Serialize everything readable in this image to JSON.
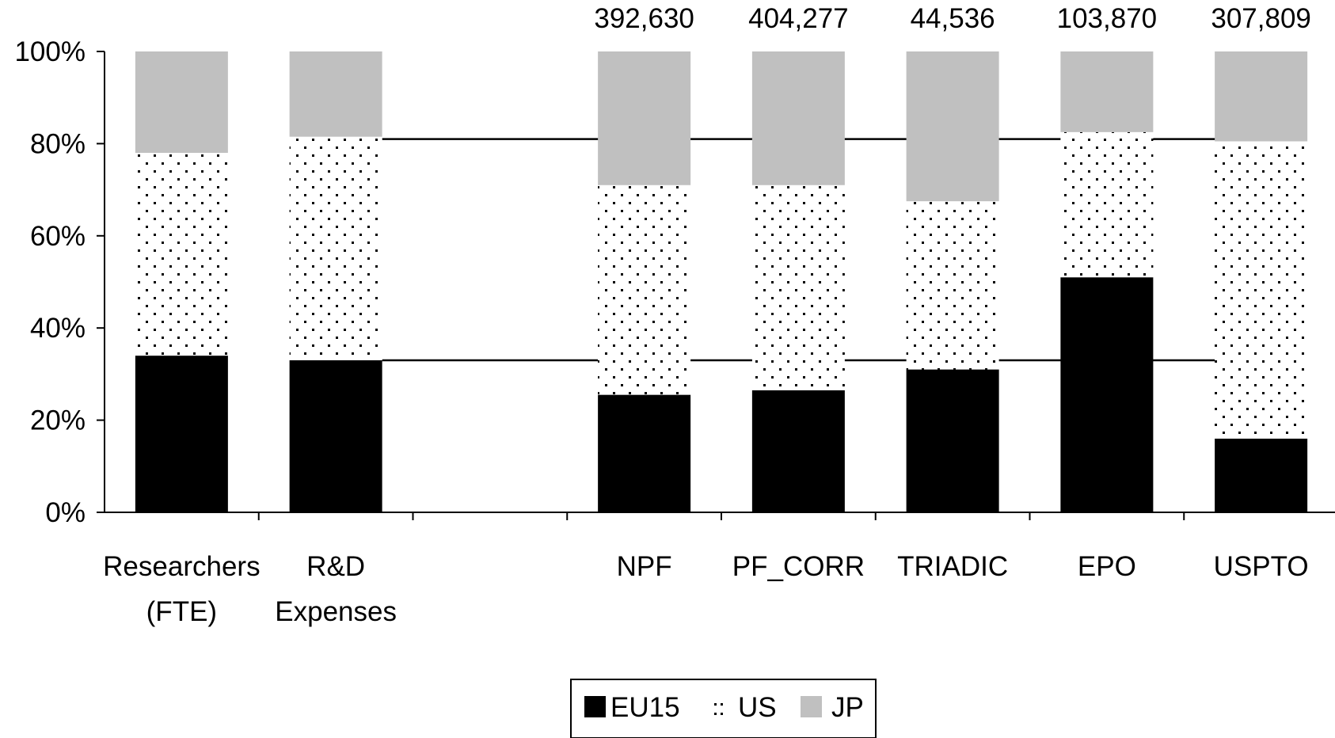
{
  "chart_data": {
    "type": "bar",
    "stacked": true,
    "percent_stacked": true,
    "categories": [
      [
        "Researchers",
        "(FTE)"
      ],
      [
        "R&D",
        "Expenses"
      ],
      [
        ""
      ],
      [
        "NPF"
      ],
      [
        "PF_CORR"
      ],
      [
        "TRIADIC"
      ],
      [
        "EPO"
      ],
      [
        "USPTO"
      ]
    ],
    "top_labels": [
      "",
      "",
      "",
      "392,630",
      "404,277",
      "44,536",
      "103,870",
      "307,809"
    ],
    "series": [
      {
        "name": "EU15",
        "color": "#000000",
        "fill": "solid",
        "values": [
          34,
          33,
          null,
          25.5,
          26.5,
          31,
          51,
          16
        ]
      },
      {
        "name": "US",
        "color": "#000000",
        "fill": "dotted",
        "values": [
          44,
          48.5,
          null,
          45.5,
          44.5,
          36.5,
          31.5,
          64.5
        ]
      },
      {
        "name": "JP",
        "color": "#c0c0c0",
        "fill": "solid",
        "values": [
          22,
          18.5,
          null,
          29,
          29,
          32.5,
          17.5,
          19.5
        ]
      }
    ],
    "reference_lines": [
      {
        "y": 81,
        "style": "solid"
      },
      {
        "y": 33,
        "style": "solid"
      }
    ],
    "y_ticks": [
      "0%",
      "20%",
      "40%",
      "60%",
      "80%",
      "100%"
    ],
    "ylim": [
      0,
      100
    ],
    "xlabel": "",
    "ylabel": "",
    "legend": {
      "position": "bottom-center",
      "items": [
        "EU15",
        "US",
        "JP"
      ]
    }
  }
}
